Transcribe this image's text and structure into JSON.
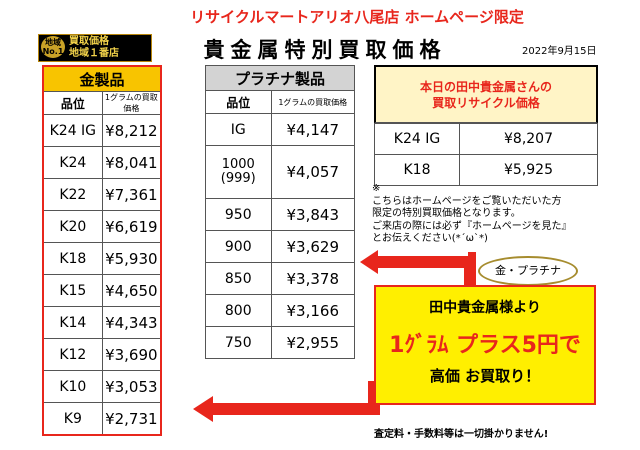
{
  "header": {
    "store_title": "リサイクルマートアリオ八尾店 ホームページ限定",
    "main_title": "貴金属特別買取価格",
    "date": "2022年9月15日"
  },
  "badge": {
    "no1": "地域 No.1",
    "line1": "買取価格",
    "line2": "地域１番店"
  },
  "gold": {
    "title": "金製品",
    "col_grade": "品位",
    "col_price": "1グラムの買取価格",
    "rows": [
      {
        "grade": "K24 IG",
        "price": "¥8,212"
      },
      {
        "grade": "K24",
        "price": "¥8,041"
      },
      {
        "grade": "K22",
        "price": "¥7,361"
      },
      {
        "grade": "K20",
        "price": "¥6,619"
      },
      {
        "grade": "K18",
        "price": "¥5,930"
      },
      {
        "grade": "K15",
        "price": "¥4,650"
      },
      {
        "grade": "K14",
        "price": "¥4,343"
      },
      {
        "grade": "K12",
        "price": "¥3,690"
      },
      {
        "grade": "K10",
        "price": "¥3,053"
      },
      {
        "grade": "K9",
        "price": "¥2,731"
      }
    ]
  },
  "platinum": {
    "title": "プラチナ製品",
    "col_grade": "品位",
    "col_price": "1グラムの買取価格",
    "rows": [
      {
        "grade": "IG",
        "price": "¥4,147"
      },
      {
        "grade": "1000",
        "grade2": "(999)",
        "price": "¥4,057"
      },
      {
        "grade": "950",
        "price": "¥3,843"
      },
      {
        "grade": "900",
        "price": "¥3,629"
      },
      {
        "grade": "850",
        "price": "¥3,378"
      },
      {
        "grade": "800",
        "price": "¥3,166"
      },
      {
        "grade": "750",
        "price": "¥2,955"
      }
    ]
  },
  "today": {
    "line1": "本日の田中貴金属さんの",
    "line2": "買取リサイクル価格",
    "rows": [
      {
        "grade": "K24 IG",
        "price": "¥8,207"
      },
      {
        "grade": "K18",
        "price": "¥5,925"
      }
    ]
  },
  "note": {
    "mark": "※",
    "line1": "こちらはホームページをご覧いただいた方",
    "line2": "限定の特別買取価格となります。",
    "line3": "ご来店の際には必ず『ホームページを見た』",
    "line4": "とお伝えください(*´ω`*)"
  },
  "bubble": "金・プラチナ",
  "banner": {
    "line1": "田中貴金属様より",
    "line2": "1ｸﾞﾗﾑ プラス5円で",
    "line3": "高価 お買取り！"
  },
  "footer": "査定料・手数料等は一切掛かりません!",
  "colors": {
    "accent_red": "#e8261c",
    "gold_header": "#f8c400",
    "platinum_header": "#d3d3d3",
    "banner_yellow": "#ffef00"
  }
}
